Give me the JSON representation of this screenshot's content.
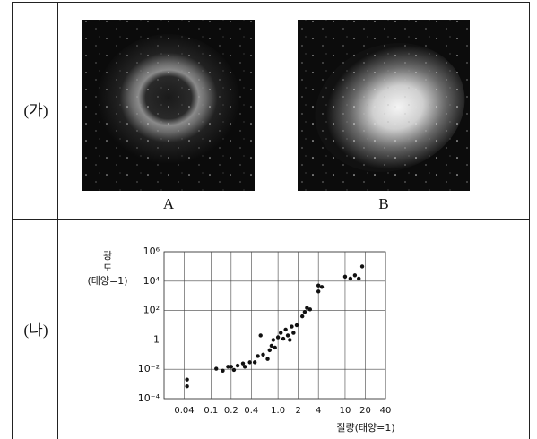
{
  "panels": {
    "labels": [
      "(가)",
      "(나)"
    ],
    "captions": [
      "A",
      "B"
    ]
  },
  "chart_data": {
    "type": "scatter",
    "ylabel": [
      "광",
      "도",
      "(태양=1)"
    ],
    "xlabel": "질량(태양=1)",
    "log_x": true,
    "log_y": true,
    "grid": true,
    "xlim": [
      0.02,
      40
    ],
    "ylim": [
      0.0001,
      1000000
    ],
    "xticks": [
      0.04,
      0.1,
      0.2,
      0.4,
      {
        "value": 1,
        "label": "1.0"
      },
      2,
      4,
      10,
      20,
      40
    ],
    "yticks": [
      {
        "value": 0.0001,
        "label": "10⁻⁴"
      },
      {
        "value": 0.01,
        "label": "10⁻²"
      },
      1,
      {
        "value": 100,
        "label": "10²"
      },
      {
        "value": 10000,
        "label": "10⁴"
      },
      {
        "value": 1000000,
        "label": "10⁶"
      }
    ],
    "x": [
      0.044,
      0.044,
      0.12,
      0.15,
      0.18,
      0.2,
      0.22,
      0.25,
      0.3,
      0.32,
      0.38,
      0.45,
      0.5,
      0.55,
      0.6,
      0.7,
      0.75,
      0.8,
      0.85,
      0.9,
      1.0,
      1.1,
      1.2,
      1.3,
      1.4,
      1.5,
      1.6,
      1.7,
      1.9,
      2.3,
      2.5,
      2.7,
      3.0,
      4.0,
      4.0,
      4.5,
      10,
      12,
      14,
      16,
      18
    ],
    "series": [
      {
        "color": "#111111",
        "values": [
          0.0007,
          0.002,
          0.011,
          0.008,
          0.015,
          0.015,
          0.009,
          0.018,
          0.025,
          0.015,
          0.03,
          0.03,
          0.08,
          2,
          0.1,
          0.05,
          0.2,
          0.4,
          1,
          0.3,
          1.5,
          3,
          1.2,
          5,
          2,
          1,
          8,
          3,
          10,
          40,
          80,
          150,
          120,
          5000,
          2000,
          4000,
          20000,
          15000,
          25000,
          15000,
          100000
        ]
      }
    ]
  }
}
